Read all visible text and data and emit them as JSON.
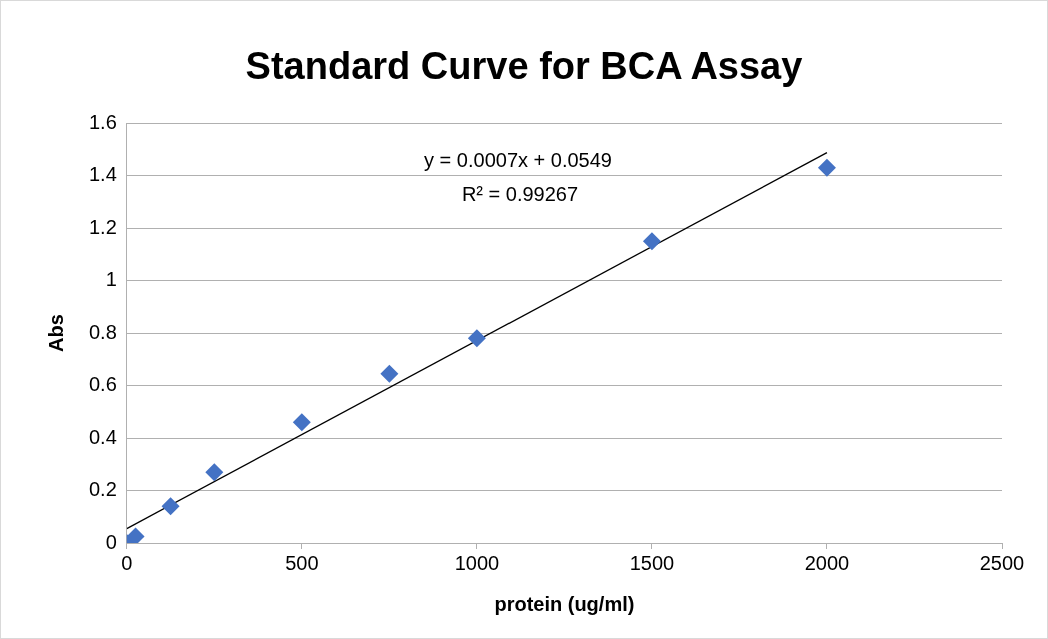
{
  "chart_data": {
    "type": "scatter",
    "title": "Standard Curve for BCA Assay",
    "xlabel": "protein (ug/ml)",
    "ylabel": "Abs",
    "x": [
      0,
      25,
      125,
      250,
      500,
      750,
      1000,
      1500,
      2000
    ],
    "series": [
      {
        "color": "#4472c4",
        "values": [
          0,
          0.025,
          0.14,
          0.27,
          0.46,
          0.645,
          0.78,
          1.15,
          1.43
        ],
        "marker": "diamond"
      },
      {
        "type": "line",
        "color": "#000000",
        "x": [
          0,
          2000
        ],
        "values": [
          0.055,
          1.487
        ],
        "marker": "none"
      }
    ],
    "xlim": [
      0,
      2500
    ],
    "xticks": [
      0,
      500,
      1000,
      1500,
      2000,
      2500
    ],
    "ylim": [
      0,
      1.6
    ],
    "yticks": [
      0,
      0.2,
      0.4,
      0.6,
      0.8,
      1,
      1.2,
      1.4,
      1.6
    ],
    "grid": "y",
    "legend": false,
    "annotations": [
      "y = 0.0007x + 0.0549",
      "R² = 0.99267"
    ]
  }
}
